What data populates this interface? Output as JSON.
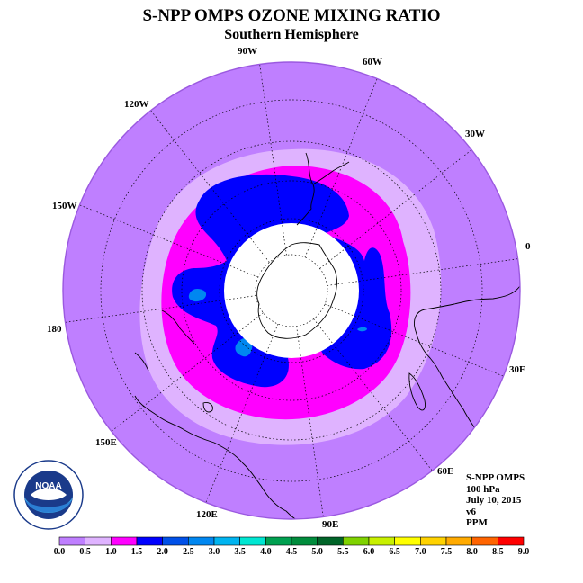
{
  "header": {
    "title": "S-NPP OMPS OZONE MIXING RATIO",
    "subtitle": "Southern Hemisphere"
  },
  "map": {
    "projection": "south-polar-stereographic",
    "longitude_labels": [
      "90W",
      "60W",
      "30W",
      "0",
      "30E",
      "60E",
      "90E",
      "120E",
      "150E",
      "180",
      "150W",
      "120W"
    ],
    "colors": {
      "ring_outer": "#bf7fff",
      "ring_light": "#dfb3ff",
      "band_magenta": "#ff00ff",
      "band_blue": "#0000ff",
      "band_light_blue": "#0087f0",
      "polar_night": "#ffffff"
    }
  },
  "info": {
    "product": "S-NPP OMPS",
    "level": "100 hPa",
    "date": "July 10, 2015",
    "version": "v6",
    "units": "PPM"
  },
  "logo": {
    "name": "NOAA",
    "ring_text": "NATIONAL OCEANIC AND ATMOSPHERIC ADMINISTRATION · U.S. DEPARTMENT OF COMMERCE"
  },
  "legend": {
    "ticks": [
      "0.0",
      "0.5",
      "1.0",
      "1.5",
      "2.0",
      "2.5",
      "3.0",
      "3.5",
      "4.0",
      "4.5",
      "5.0",
      "5.5",
      "6.0",
      "6.5",
      "7.0",
      "7.5",
      "8.0",
      "8.5",
      "9.0"
    ],
    "colors": [
      "#bf7fff",
      "#dfb3ff",
      "#ff00ff",
      "#0000ff",
      "#0050e8",
      "#0087f0",
      "#00b4f0",
      "#00e6d2",
      "#00a050",
      "#008c3c",
      "#006428",
      "#7fd200",
      "#c8f000",
      "#ffff00",
      "#ffd200",
      "#ffaa00",
      "#ff6400",
      "#ff0000",
      "#8c5a3c"
    ]
  }
}
